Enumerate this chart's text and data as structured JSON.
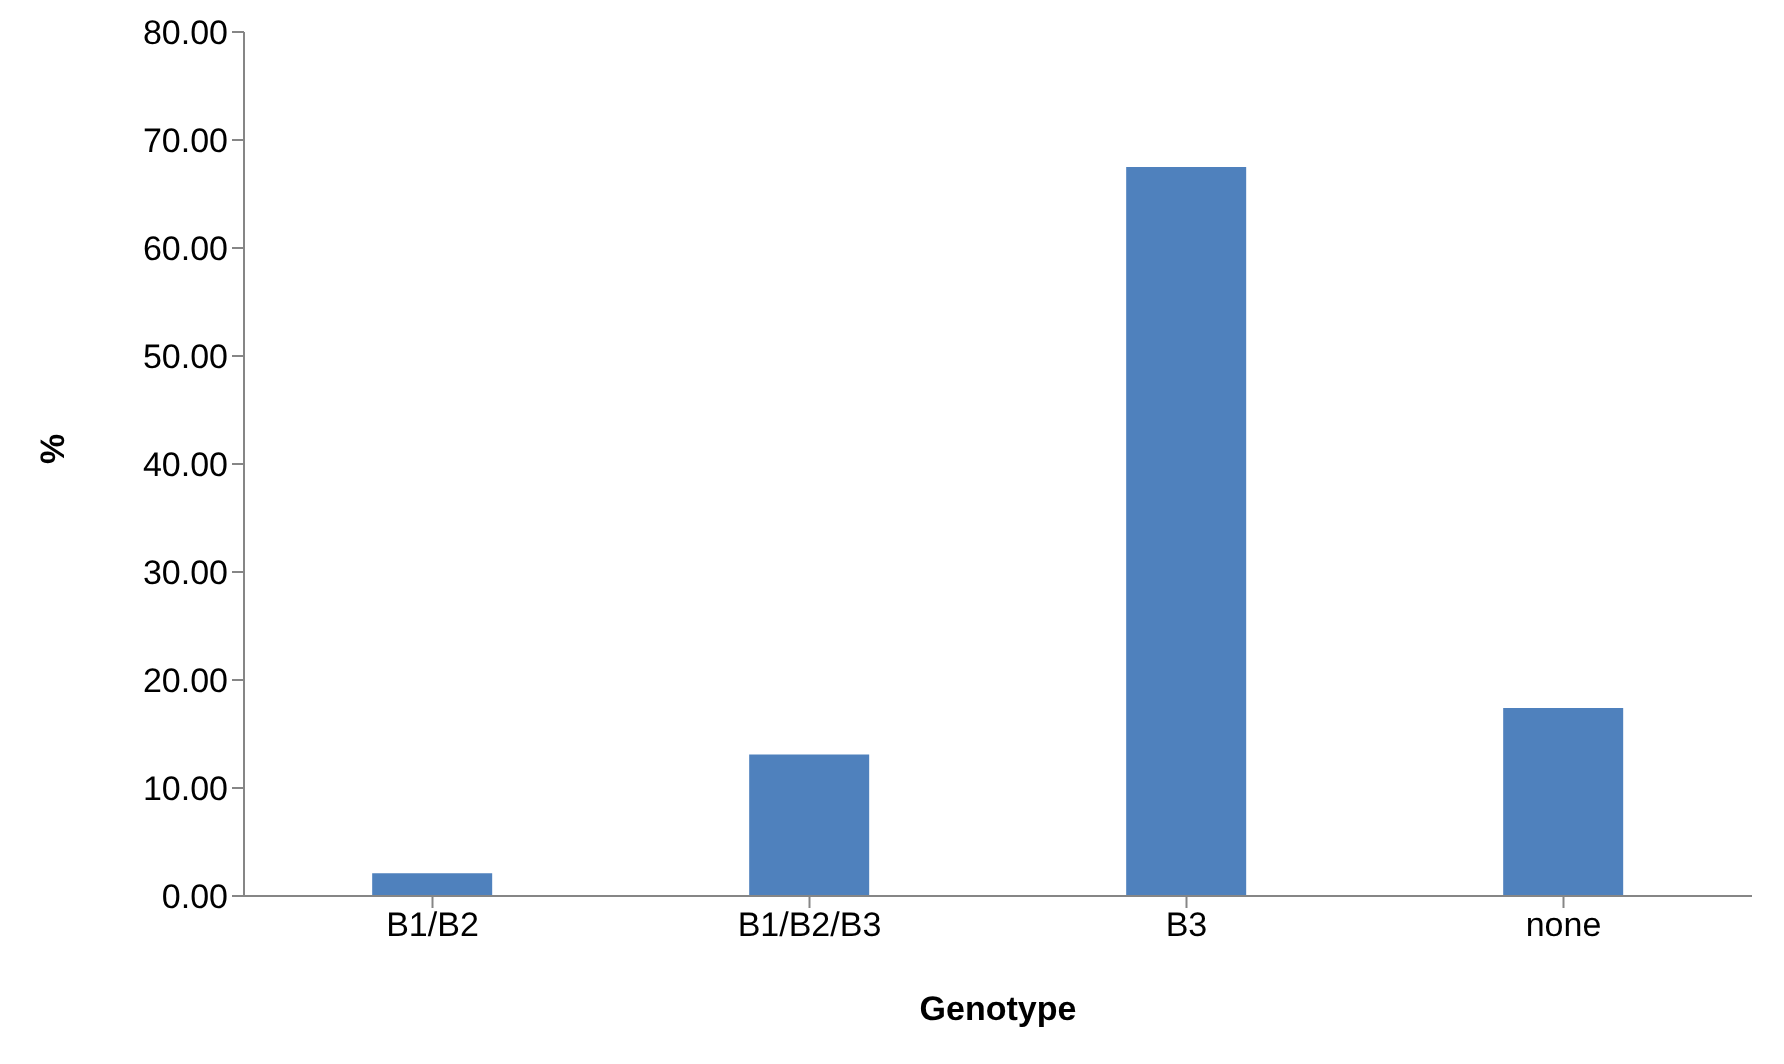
{
  "chart_data": {
    "type": "bar",
    "xlabel": "Genotype",
    "ylabel": "%",
    "categories": [
      "B1/B2",
      "B1/B2/B3",
      "B3",
      "none"
    ],
    "values": [
      2.1,
      13.1,
      67.5,
      17.4
    ],
    "color": "#4f81bd",
    "ylim": [
      0,
      80
    ],
    "yticks": [
      {
        "value": 0,
        "label": "0.00"
      },
      {
        "value": 10,
        "label": "10.00"
      },
      {
        "value": 20,
        "label": "20.00"
      },
      {
        "value": 30,
        "label": "30.00"
      },
      {
        "value": 40,
        "label": "40.00"
      },
      {
        "value": 50,
        "label": "50.00"
      },
      {
        "value": 60,
        "label": "60.00"
      },
      {
        "value": 70,
        "label": "70.00"
      },
      {
        "value": 80,
        "label": "80.00"
      }
    ],
    "grid": false,
    "legend": false
  }
}
